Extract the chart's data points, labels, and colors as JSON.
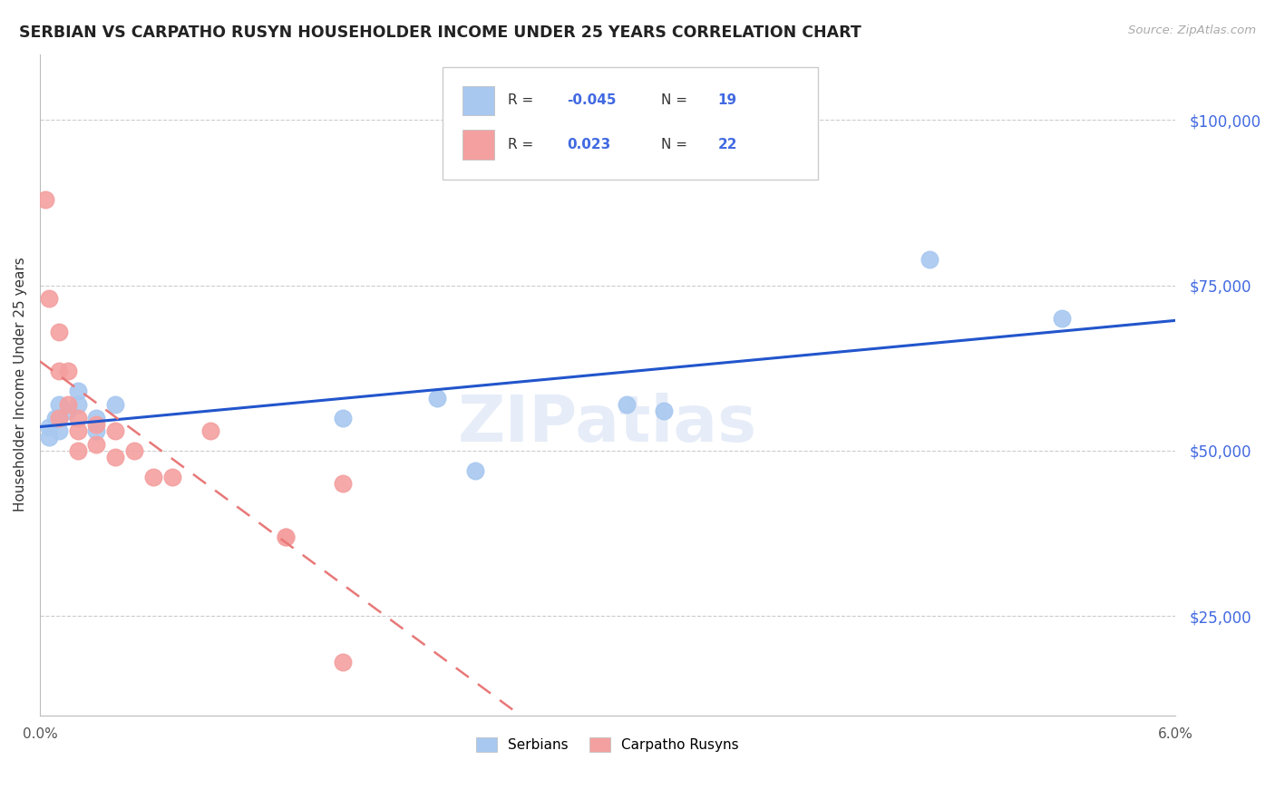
{
  "title": "SERBIAN VS CARPATHO RUSYN HOUSEHOLDER INCOME UNDER 25 YEARS CORRELATION CHART",
  "source": "Source: ZipAtlas.com",
  "ylabel": "Householder Income Under 25 years",
  "xmin": 0.0,
  "xmax": 0.06,
  "ymin": 10000,
  "ymax": 110000,
  "yticks": [
    25000,
    50000,
    75000,
    100000
  ],
  "ytick_labels": [
    "$25,000",
    "$50,000",
    "$75,000",
    "$100,000"
  ],
  "serbian_color": "#a8c8f0",
  "carpatho_color": "#f4a0a0",
  "serbian_line_color": "#2255cc",
  "carpatho_line_color": "#e87878",
  "watermark_text": "ZIPatlas",
  "serbian_x": [
    0.0005,
    0.0005,
    0.0008,
    0.001,
    0.001,
    0.001,
    0.0015,
    0.002,
    0.002,
    0.003,
    0.003,
    0.004,
    0.016,
    0.021,
    0.023,
    0.031,
    0.033,
    0.047,
    0.054
  ],
  "serbian_y": [
    53500,
    52000,
    55000,
    57000,
    55000,
    53000,
    56000,
    59000,
    57000,
    55000,
    53000,
    57000,
    55000,
    58000,
    47000,
    57000,
    56000,
    79000,
    70000
  ],
  "carpatho_x": [
    0.0003,
    0.0005,
    0.001,
    0.001,
    0.001,
    0.0015,
    0.0015,
    0.002,
    0.002,
    0.002,
    0.003,
    0.003,
    0.004,
    0.004,
    0.005,
    0.006,
    0.007,
    0.009,
    0.013,
    0.013,
    0.016,
    0.016
  ],
  "carpatho_y": [
    88000,
    73000,
    68000,
    62000,
    55000,
    62000,
    57000,
    55000,
    53000,
    50000,
    54000,
    51000,
    53000,
    49000,
    50000,
    46000,
    46000,
    53000,
    37000,
    37000,
    18000,
    45000
  ]
}
